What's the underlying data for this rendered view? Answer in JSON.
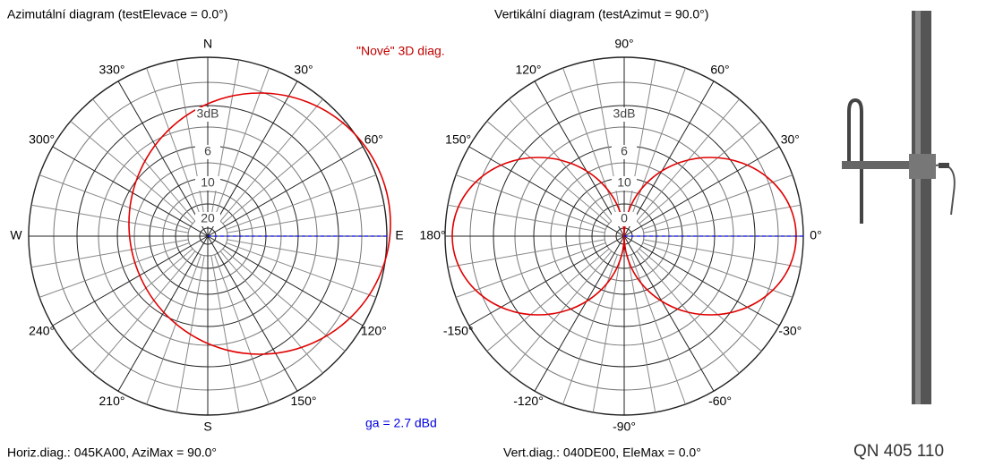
{
  "left_panel": {
    "title": "Azimutální diagram  (testElevace = 0.0°)",
    "angle_labels": [
      "N",
      "30°",
      "60°",
      "E",
      "120°",
      "150°",
      "S",
      "210°",
      "240°",
      "W",
      "300°",
      "330°"
    ],
    "scale_labels": [
      "3dB",
      "6",
      "10",
      "20"
    ],
    "footer": "Horiz.diag.: 045KA00,   AziMax = 90.0°"
  },
  "center": {
    "note": "\"Nové\" 3D diag.",
    "gain": "ga = 2.7 dBd"
  },
  "right_panel": {
    "title": "Vertikální diagram  (testAzimut = 90.0°)",
    "angle_labels": [
      "90°",
      "60°",
      "30°",
      "0°",
      "-30°",
      "-60°",
      "-90°",
      "-120°",
      "-150°",
      "180°",
      "150°",
      "120°"
    ],
    "scale_labels": [
      "3dB",
      "6",
      "10",
      "0"
    ],
    "footer": "Vert.diag.: 040DE00,   EleMax = 0.0°"
  },
  "antenna": {
    "caption": "QN 405 110"
  }
}
